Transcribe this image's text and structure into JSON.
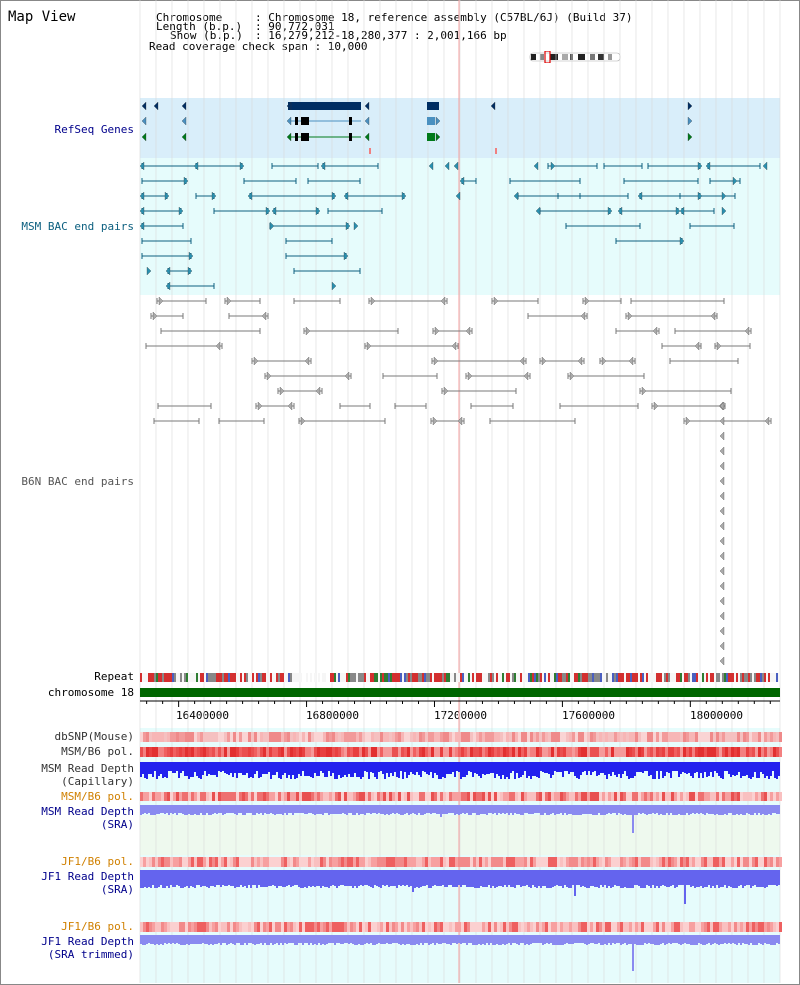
{
  "view_title": "Map View",
  "header": {
    "chromosome_key": "Chromosome",
    "chromosome_val": ": Chromosome 18, reference assembly (C57BL/6J) (Build 37)",
    "length_key": "Length (b.p.)",
    "length_val": ": 90,772,031",
    "show_key": "Show (b.p.)",
    "show_val": ": 16,279,212-18,280,377 : 2,001,166 bp",
    "coverage_text": "Read coverage check span : 10,000"
  },
  "track_labels": {
    "refseq": "RefSeq Genes",
    "msm_bac": "MSM BAC end pairs",
    "b6n_bac": "B6N BAC end pairs",
    "repeat": "Repeat",
    "chromosome": "chromosome 18",
    "dbsnp": "dbSNP(Mouse)",
    "msm_b6_pol_1": "MSM/B6 pol.",
    "msm_depth_cap_1": "MSM Read Depth",
    "msm_depth_cap_2": "(Capillary)",
    "msm_b6_pol_2": "MSM/B6 pol.",
    "msm_depth_sra_1": "MSM Read Depth",
    "msm_depth_sra_2": "(SRA)",
    "jf1_pol_1": "JF1/B6 pol.",
    "jf1_depth_sra_1": "JF1 Read Depth",
    "jf1_depth_sra_2": "(SRA)",
    "jf1_pol_2": "JF1/B6 pol.",
    "jf1_depth_trim_1": "JF1 Read Depth",
    "jf1_depth_trim_2": "(SRA trimmed)"
  },
  "axis_ticks": [
    {
      "label": "16400000",
      "pos": 16400000
    },
    {
      "label": "16800000",
      "pos": 16800000
    },
    {
      "label": "17200000",
      "pos": 17200000
    },
    {
      "label": "17600000",
      "pos": 17600000
    },
    {
      "label": "18000000",
      "pos": 18000000
    }
  ],
  "colors": {
    "refseq_bg": "#d9eefa",
    "track_bg": "#e6fcfc",
    "chromosome_bar": "#006600",
    "gene_dark": "#002e63",
    "gene_mid": "#4a90c0",
    "gene_green": "#007a1a",
    "msm_bac": "#0d5f7f",
    "b6n_bac": "#7a7a7a",
    "label_blue": "#00008b",
    "label_orange": "#d08000",
    "label_teal": "#0b5f7f"
  }
}
